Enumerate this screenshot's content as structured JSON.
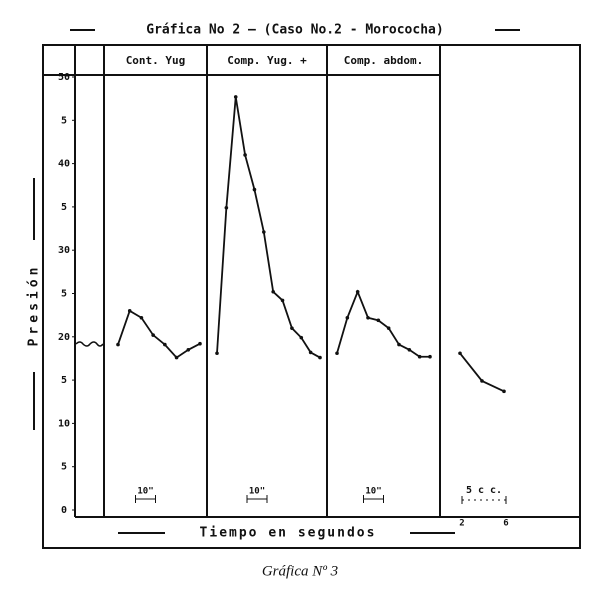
{
  "chart_data": {
    "type": "line",
    "title": "Gráfica No 2 — (Caso No.2 - Morococha)",
    "ylabel": "Presión",
    "xlabel": "Tiempo en segundos",
    "caption": "Gráfica Nº 3",
    "color": "#111111",
    "ylim": [
      0,
      50
    ],
    "yticks": [
      0,
      5,
      10,
      {
        "value": 15,
        "label": "5"
      },
      20,
      {
        "value": 25,
        "label": "5"
      },
      30,
      {
        "value": 35,
        "label": "5"
      },
      40,
      {
        "value": 45,
        "label": "5"
      },
      50
    ],
    "panels": [
      {
        "name": "Cont. Yug",
        "scale_label": "10\"",
        "values": [
          19.1,
          23.0,
          22.2,
          20.2,
          19.1,
          17.6,
          18.5,
          19.2
        ]
      },
      {
        "name": "Comp. Yug. +",
        "scale_label": "10\"",
        "values": [
          18.1,
          34.9,
          47.7,
          41.0,
          37.0,
          32.1,
          25.2,
          24.2,
          21.0,
          19.9,
          18.2,
          17.6
        ]
      },
      {
        "name": "Comp. abdom.",
        "scale_label": "10\"",
        "values": [
          18.1,
          22.2,
          25.2,
          22.2,
          21.9,
          21.0,
          19.1,
          18.5,
          17.7,
          17.7
        ]
      },
      {
        "scale_label": "5 c c.",
        "scale_ticks": [
          "2",
          "6"
        ],
        "values": [
          18.1,
          14.9,
          13.7
        ]
      }
    ]
  }
}
